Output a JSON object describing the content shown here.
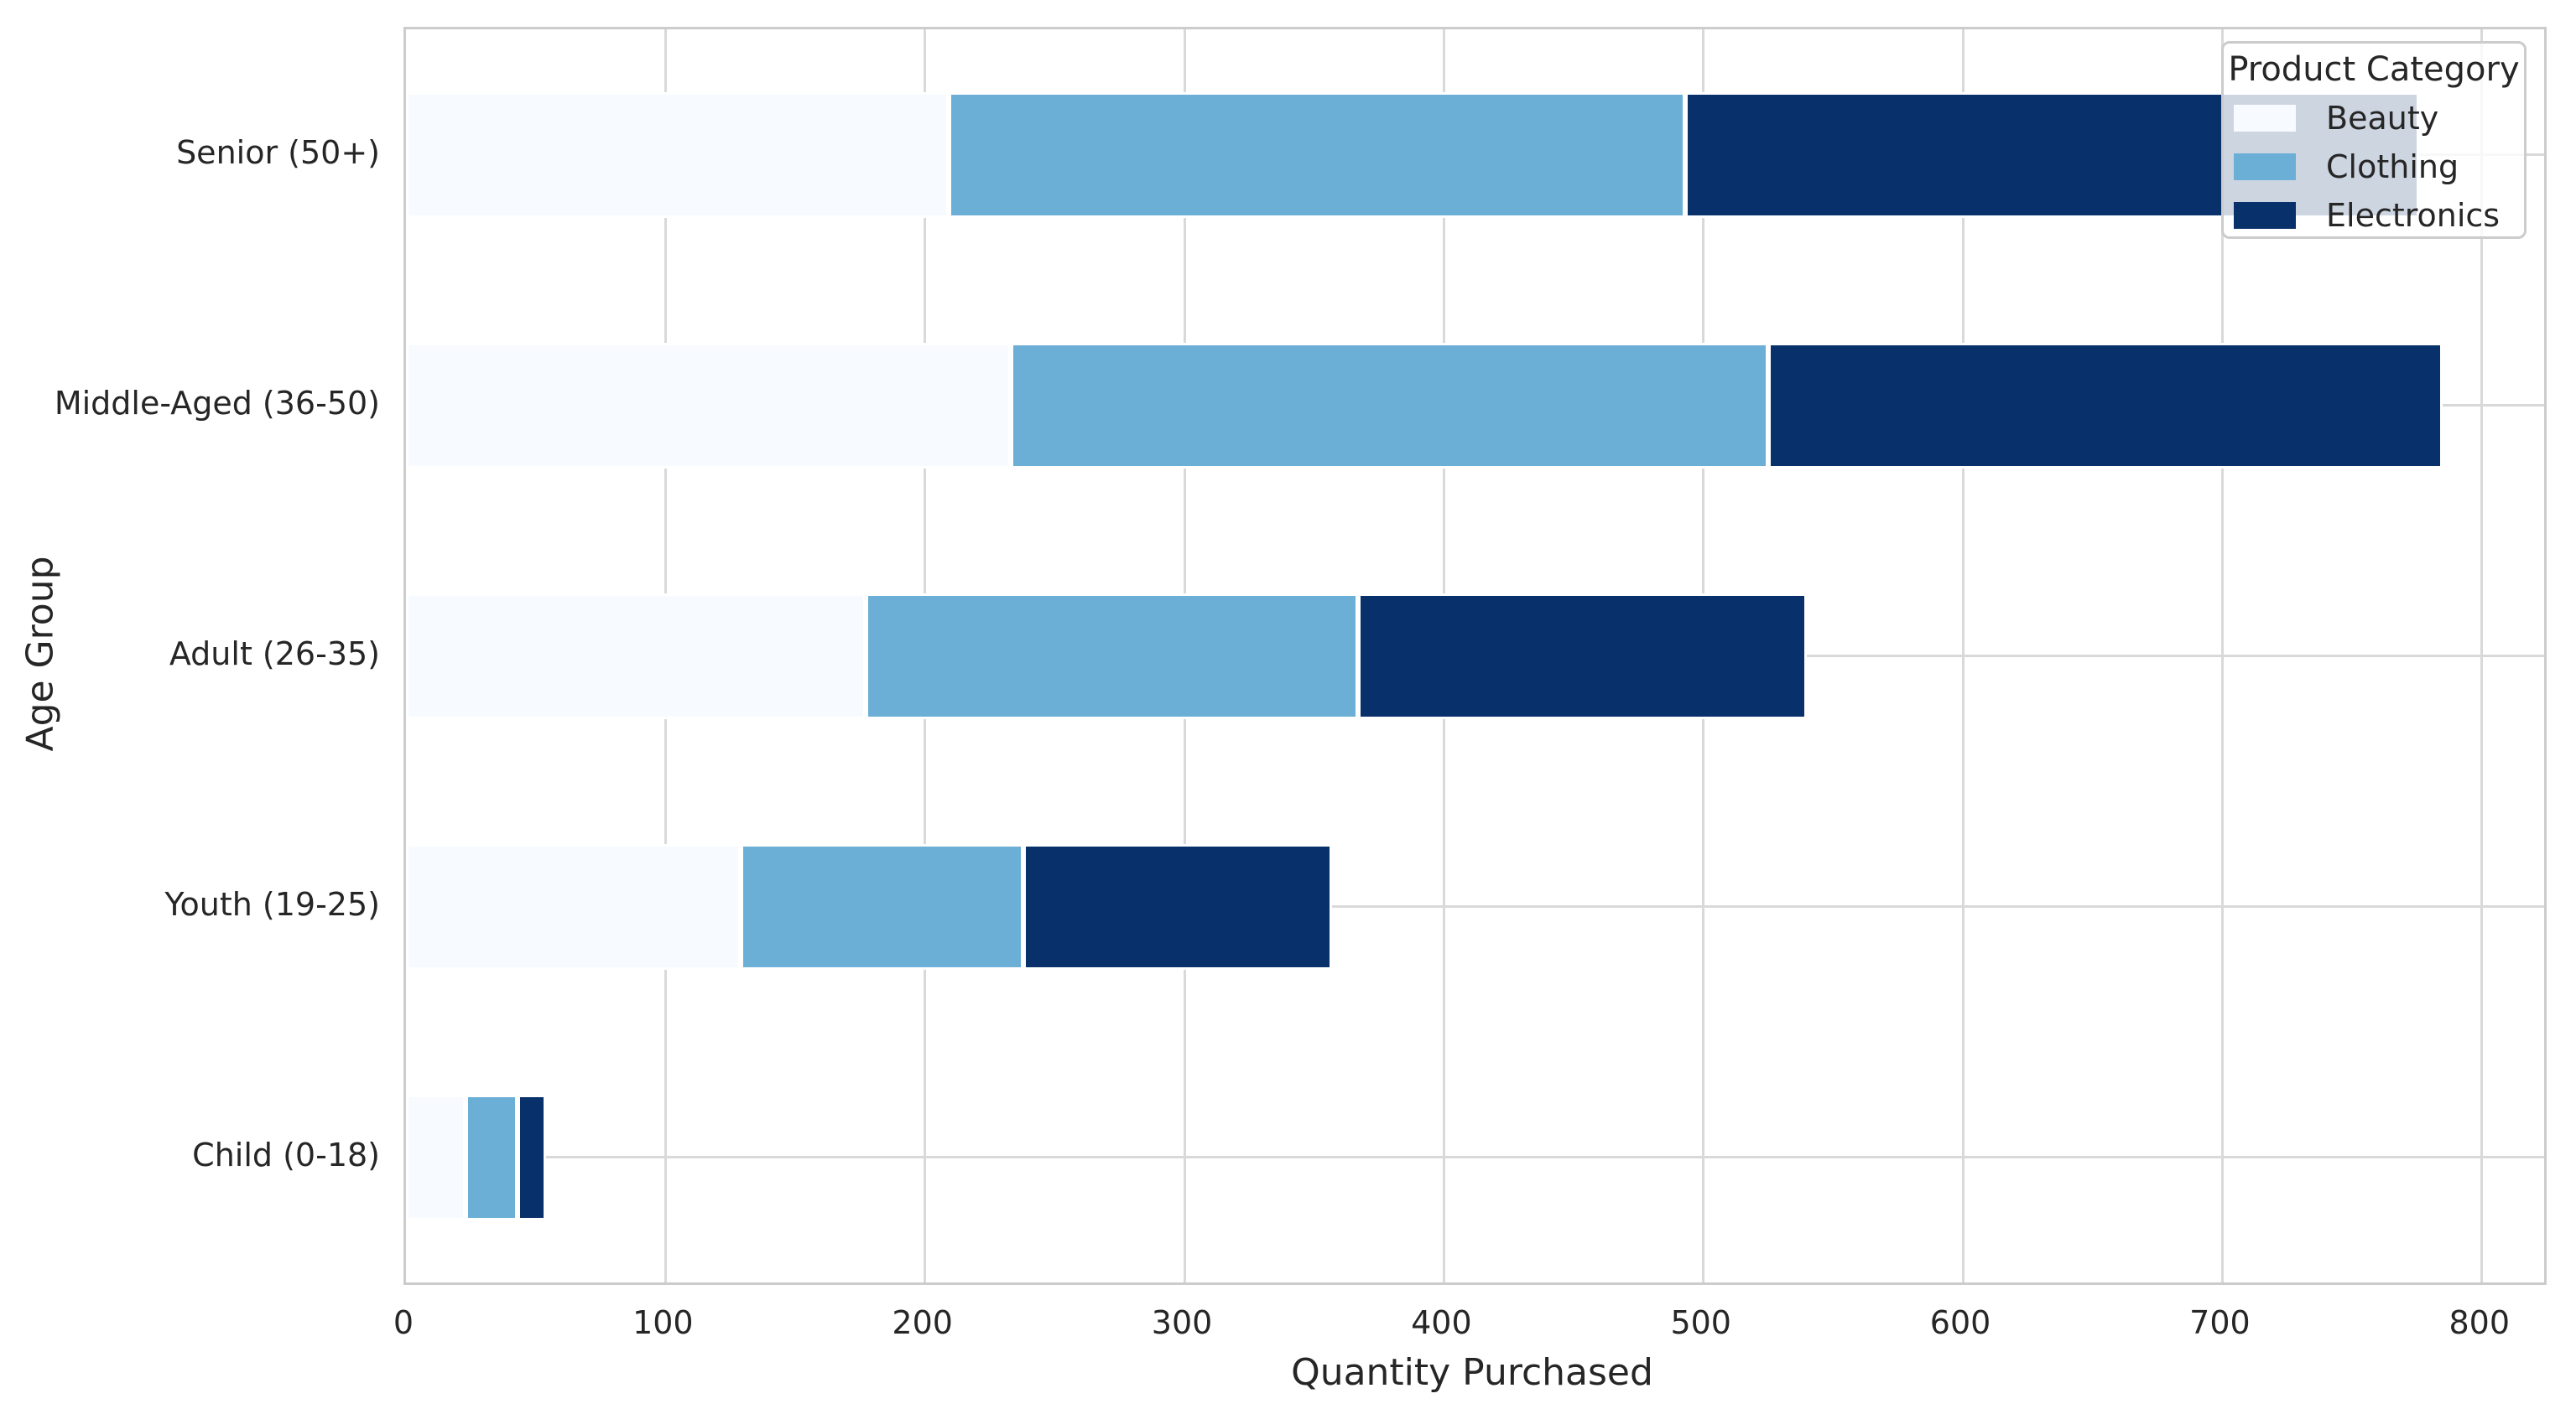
{
  "chart_data": {
    "type": "bar",
    "orientation": "horizontal",
    "stacked": true,
    "xlabel": "Quantity Purchased",
    "ylabel": "Age Group",
    "legend_title": "Product Category",
    "legend_position": "upper right",
    "grid": true,
    "categories": [
      "Senior (50+)",
      "Middle-Aged (36-50)",
      "Adult (26-35)",
      "Youth (19-25)",
      "Child (0-18)"
    ],
    "series": [
      {
        "name": "Beauty",
        "color": "#f7fbff",
        "values": [
          209,
          233,
          177,
          129,
          23
        ]
      },
      {
        "name": "Clothing",
        "color": "#6baed6",
        "values": [
          284,
          292,
          190,
          109,
          20
        ]
      },
      {
        "name": "Electronics",
        "color": "#08306b",
        "values": [
          283,
          260,
          173,
          119,
          11
        ]
      }
    ],
    "totals": [
      776,
      785,
      540,
      357,
      54
    ],
    "x_ticks": [
      0,
      100,
      200,
      300,
      400,
      500,
      600,
      700,
      800
    ],
    "xlim": [
      0,
      824
    ]
  },
  "colors": {
    "grid": "#d9d9d9",
    "spine": "#cccccc",
    "text": "#262626",
    "segment_edge": "#ffffff",
    "legend_bg_alpha": "rgba(255,255,255,0.8)"
  }
}
